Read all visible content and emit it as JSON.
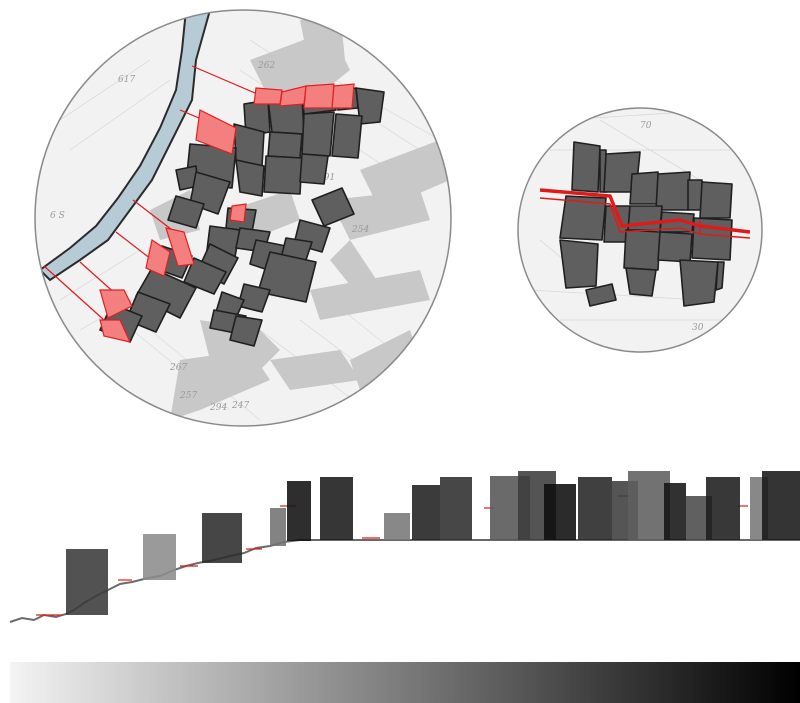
{
  "colors": {
    "background": "#ffffff",
    "map_paper": "#f2f2f2",
    "circle_stroke": "#8a8a8a",
    "river": "#b7cbd6",
    "river_edge": "#2b2b2b",
    "street_shadow": "#c8c8c8",
    "block_fill": "#5f5f5f",
    "block_stroke": "#1f1f1f",
    "highlight_fill": "#f47f7f",
    "highlight_stroke": "#e02020",
    "section_line": "#e01a1a",
    "terrain_line": "#6a6a6a",
    "gradient_start": "#f4f4f4",
    "gradient_end": "#000000"
  },
  "icons": [
    "map-inset-large",
    "map-inset-small",
    "section-elevation",
    "grayscale-legend"
  ],
  "map_large": {
    "label_text": "6 S",
    "parcel_numbers": [
      "617",
      "262",
      "291",
      "267",
      "257",
      "247",
      "294",
      "254"
    ]
  },
  "map_small": {
    "parcel_numbers": [
      "70",
      "30"
    ]
  },
  "elevation": {
    "bar_shades": [
      "#3a3a3a",
      "#8c8c8c",
      "#2c2c2c",
      "#727272",
      "#111111",
      "#1a1a1a",
      "#777777",
      "#202020",
      "#2e2e2e",
      "#555555",
      "#3c3c3c",
      "#0e0e0e",
      "#262626",
      "#3d3d3d",
      "#5e5e5e",
      "#141414",
      "#4a4a4a",
      "#1c1c1c",
      "#777777",
      "#181818"
    ]
  },
  "legend": {
    "gradient_from": "#f4f4f4",
    "gradient_to": "#000000"
  }
}
